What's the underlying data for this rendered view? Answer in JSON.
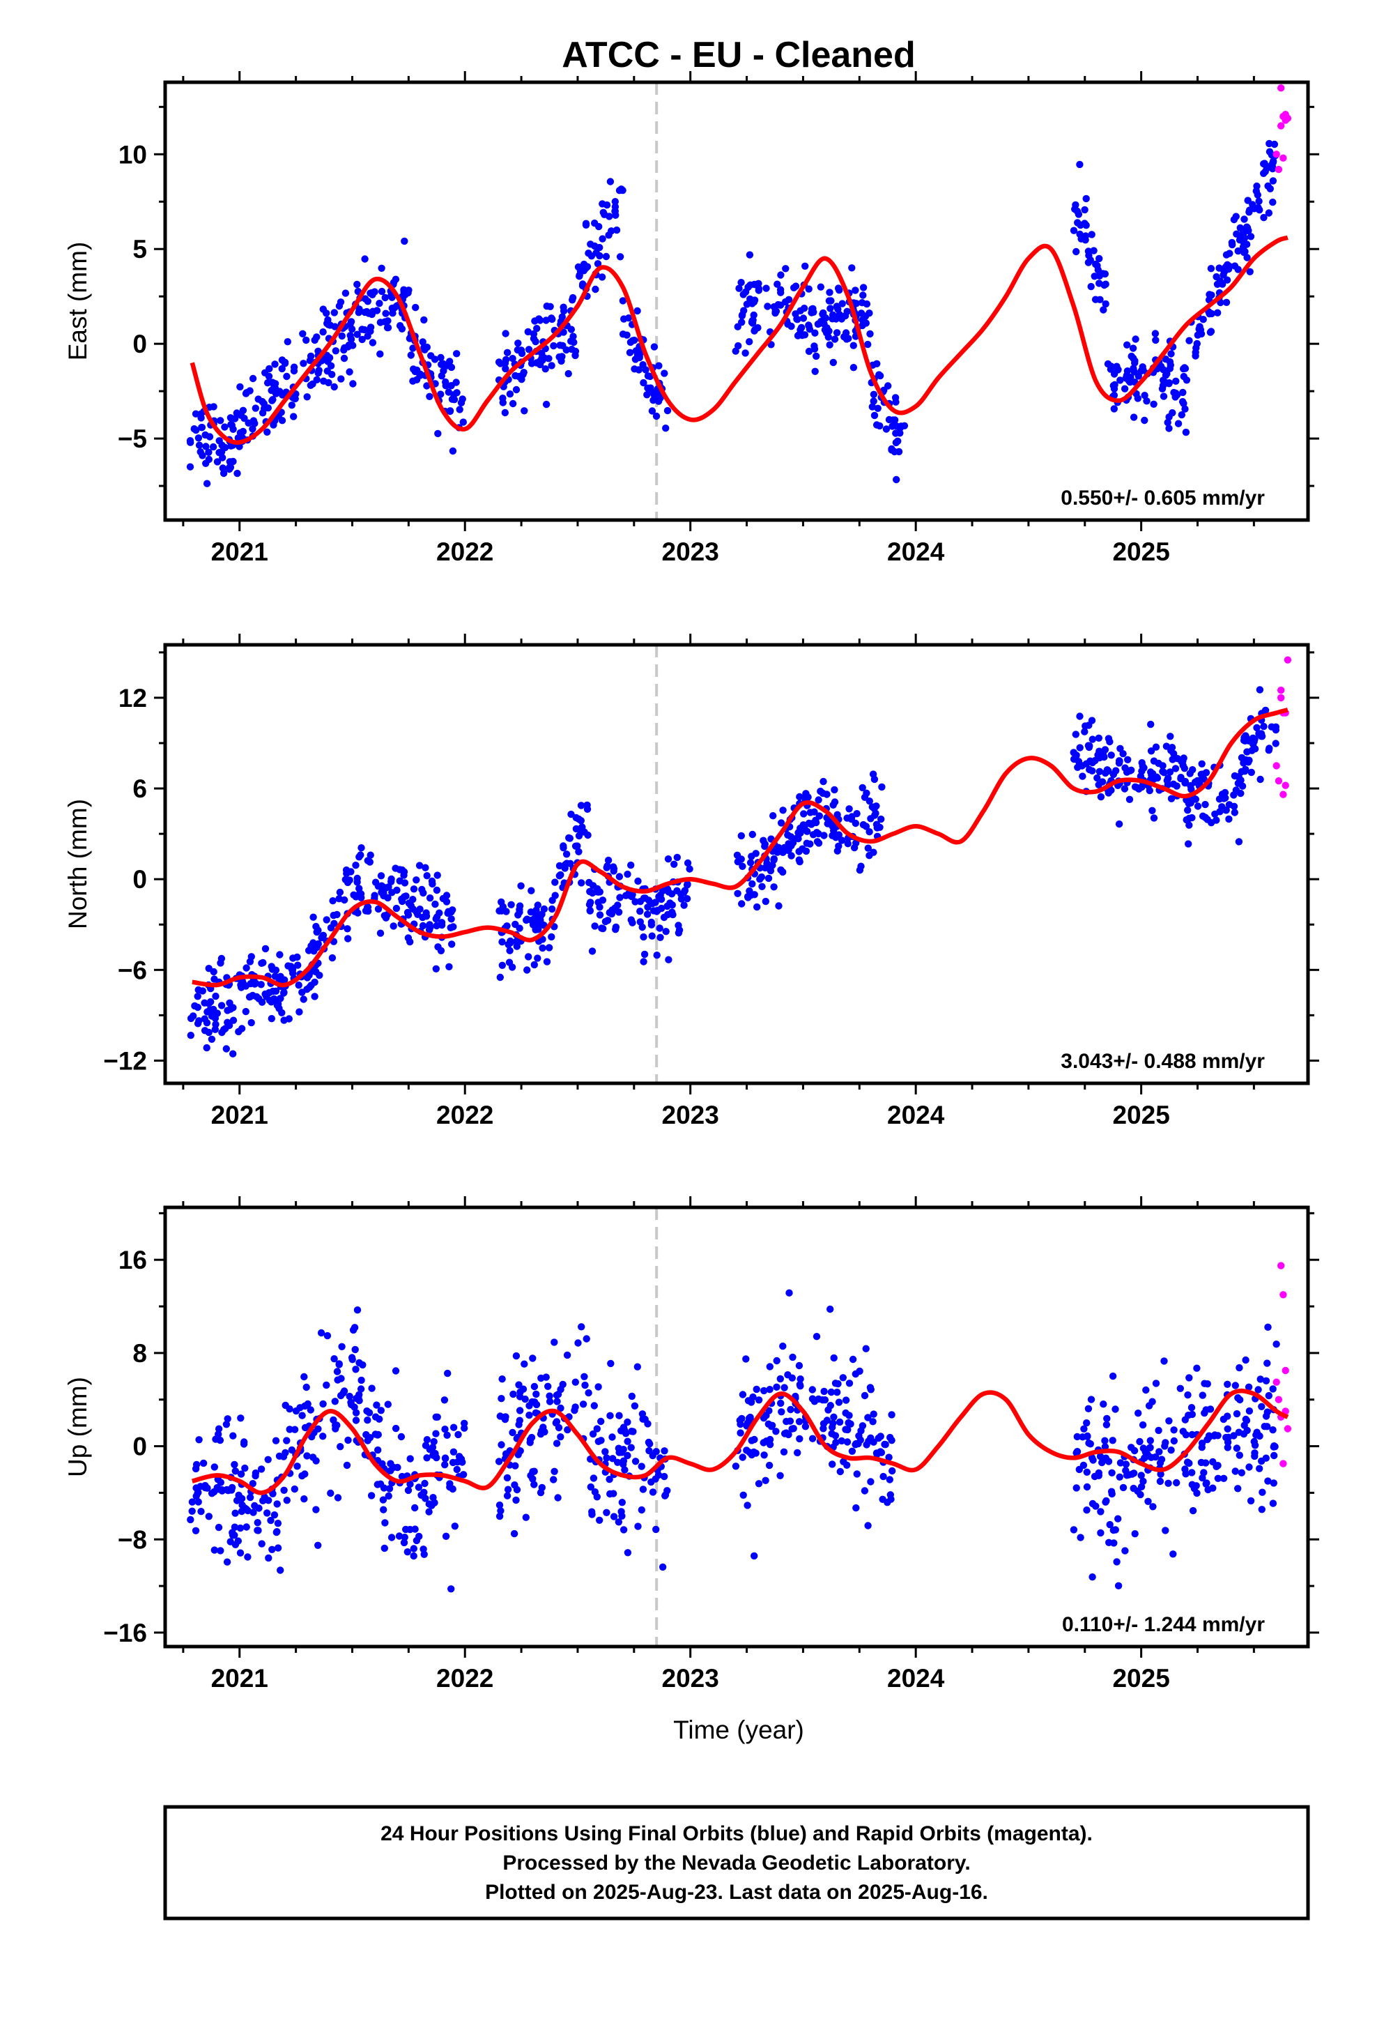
{
  "title": "ATCC  - EU - Cleaned",
  "xlabel": "Time (year)",
  "footer": {
    "line1": "24 Hour Positions Using Final Orbits (blue) and Rapid Orbits (magenta).",
    "line2": "Processed by the Nevada Geodetic Laboratory.",
    "line3": "Plotted on 2025-Aug-23. Last data on 2025-Aug-16."
  },
  "colors": {
    "final": "#0000ff",
    "rapid": "#ff00ff",
    "model": "#ff0000",
    "marker_line": "#c8c8c8"
  },
  "chart_data": [
    {
      "type": "scatter",
      "ylabel": "East (mm)",
      "rate_label": "0.550+/- 0.605 mm/yr",
      "xlim": [
        2020.67,
        2025.74
      ],
      "ylim": [
        -9.3,
        13.8
      ],
      "xticks": [
        2021,
        2022,
        2023,
        2024,
        2025
      ],
      "yticks": [
        -5,
        0,
        5,
        10
      ],
      "grid": false,
      "vline_x": 2022.85,
      "model_curve": {
        "x": [
          2020.79,
          2020.85,
          2020.92,
          2021.0,
          2021.1,
          2021.2,
          2021.3,
          2021.4,
          2021.5,
          2021.6,
          2021.7,
          2021.8,
          2021.9,
          2022.0,
          2022.1,
          2022.2,
          2022.3,
          2022.4,
          2022.5,
          2022.6,
          2022.7,
          2022.8,
          2022.9,
          2023.0,
          2023.1,
          2023.2,
          2023.3,
          2023.4,
          2023.5,
          2023.6,
          2023.7,
          2023.8,
          2023.9,
          2024.0,
          2024.1,
          2024.2,
          2024.3,
          2024.4,
          2024.5,
          2024.6,
          2024.7,
          2024.8,
          2024.9,
          2025.0,
          2025.1,
          2025.2,
          2025.3,
          2025.4,
          2025.5,
          2025.6,
          2025.65
        ],
        "y": [
          -1.0,
          -3.5,
          -4.8,
          -5.2,
          -4.5,
          -3.0,
          -1.5,
          0.0,
          1.8,
          3.4,
          2.5,
          -0.5,
          -3.5,
          -4.5,
          -3.0,
          -1.5,
          -0.5,
          0.5,
          2.0,
          4.0,
          3.0,
          -0.5,
          -3.0,
          -4.0,
          -3.5,
          -2.0,
          -0.5,
          1.0,
          3.0,
          4.5,
          2.5,
          -1.5,
          -3.5,
          -3.3,
          -1.8,
          -0.5,
          0.8,
          2.5,
          4.5,
          5.0,
          2.0,
          -2.0,
          -3.0,
          -2.0,
          -0.5,
          1.0,
          2.0,
          3.0,
          4.5,
          5.4,
          5.6
        ]
      },
      "series_seasonal": [
        {
          "x0": 2020.78,
          "x1": 2021.0,
          "y0": -4.8,
          "y1": -5.0
        },
        {
          "x0": 2021.0,
          "x1": 2021.5,
          "y0": -4.5,
          "y1": 1.0
        },
        {
          "x0": 2021.5,
          "x1": 2021.75,
          "y0": 1.5,
          "y1": 2.5
        },
        {
          "x0": 2021.75,
          "x1": 2022.0,
          "y0": 0.0,
          "y1": -4.0
        },
        {
          "x0": 2022.15,
          "x1": 2022.5,
          "y0": -2.0,
          "y1": 1.0
        },
        {
          "x0": 2022.5,
          "x1": 2022.7,
          "y0": 3.0,
          "y1": 7.5
        },
        {
          "x0": 2022.7,
          "x1": 2022.9,
          "y0": 1.0,
          "y1": -3.5
        },
        {
          "x0": 2023.2,
          "x1": 2023.8,
          "y0": 1.5,
          "y1": 1.5
        },
        {
          "x0": 2023.8,
          "x1": 2023.95,
          "y0": -2.0,
          "y1": -5.5
        },
        {
          "x0": 2024.7,
          "x1": 2024.85,
          "y0": 7.0,
          "y1": 2.5
        },
        {
          "x0": 2024.85,
          "x1": 2025.2,
          "y0": -1.5,
          "y1": -2.5
        },
        {
          "x0": 2025.2,
          "x1": 2025.6,
          "y0": -1.0,
          "y1": 10.0
        }
      ],
      "rapid_points": {
        "x": [
          2025.6,
          2025.61,
          2025.62,
          2025.62,
          2025.63,
          2025.63,
          2025.64,
          2025.64,
          2025.65
        ],
        "y": [
          10.0,
          9.2,
          11.5,
          13.5,
          12.0,
          9.8,
          11.8,
          12.1,
          11.9
        ]
      }
    },
    {
      "type": "scatter",
      "ylabel": "North (mm)",
      "rate_label": "3.043+/- 0.488 mm/yr",
      "xlim": [
        2020.67,
        2025.74
      ],
      "ylim": [
        -13.5,
        15.5
      ],
      "xticks": [
        2021,
        2022,
        2023,
        2024,
        2025
      ],
      "yticks": [
        -12,
        -6,
        0,
        6,
        12
      ],
      "grid": false,
      "vline_x": 2022.85,
      "model_curve": {
        "x": [
          2020.79,
          2020.9,
          2021.0,
          2021.1,
          2021.2,
          2021.3,
          2021.4,
          2021.5,
          2021.6,
          2021.7,
          2021.8,
          2021.9,
          2022.0,
          2022.1,
          2022.2,
          2022.3,
          2022.4,
          2022.5,
          2022.6,
          2022.7,
          2022.8,
          2022.9,
          2023.0,
          2023.1,
          2023.2,
          2023.3,
          2023.4,
          2023.5,
          2023.6,
          2023.7,
          2023.8,
          2023.9,
          2024.0,
          2024.1,
          2024.2,
          2024.3,
          2024.4,
          2024.5,
          2024.6,
          2024.7,
          2024.8,
          2024.9,
          2025.0,
          2025.1,
          2025.2,
          2025.3,
          2025.4,
          2025.5,
          2025.6,
          2025.65
        ],
        "y": [
          -6.8,
          -7.0,
          -6.5,
          -6.5,
          -7.0,
          -6.0,
          -4.0,
          -2.0,
          -1.5,
          -2.5,
          -3.5,
          -3.8,
          -3.5,
          -3.2,
          -3.5,
          -4.0,
          -2.5,
          1.0,
          0.5,
          -0.5,
          -0.8,
          -0.3,
          0.0,
          -0.3,
          -0.5,
          1.0,
          3.0,
          5.0,
          4.5,
          3.0,
          2.5,
          3.0,
          3.5,
          3.0,
          2.5,
          4.5,
          7.0,
          8.0,
          7.5,
          6.0,
          5.8,
          6.5,
          6.5,
          6.0,
          5.5,
          6.5,
          9.0,
          10.5,
          11.0,
          11.2
        ]
      },
      "series_seasonal": [
        {
          "x0": 2020.78,
          "x1": 2021.0,
          "y0": -9.0,
          "y1": -8.0
        },
        {
          "x0": 2021.0,
          "x1": 2021.3,
          "y0": -7.5,
          "y1": -7.5
        },
        {
          "x0": 2021.3,
          "x1": 2021.55,
          "y0": -6.0,
          "y1": 0.5
        },
        {
          "x0": 2021.55,
          "x1": 2021.95,
          "y0": -0.5,
          "y1": -3.0
        },
        {
          "x0": 2022.15,
          "x1": 2022.4,
          "y0": -3.5,
          "y1": -3.0
        },
        {
          "x0": 2022.4,
          "x1": 2022.55,
          "y0": -1.0,
          "y1": 4.0
        },
        {
          "x0": 2022.55,
          "x1": 2022.9,
          "y0": -1.0,
          "y1": -2.5
        },
        {
          "x0": 2022.9,
          "x1": 2023.0,
          "y0": -1.0,
          "y1": -0.5
        },
        {
          "x0": 2023.2,
          "x1": 2023.5,
          "y0": -0.5,
          "y1": 3.5
        },
        {
          "x0": 2023.5,
          "x1": 2023.85,
          "y0": 4.0,
          "y1": 3.5
        },
        {
          "x0": 2024.7,
          "x1": 2024.8,
          "y0": 10.0,
          "y1": 8.0
        },
        {
          "x0": 2024.8,
          "x1": 2025.2,
          "y0": 7.0,
          "y1": 6.5
        },
        {
          "x0": 2025.2,
          "x1": 2025.45,
          "y0": 5.5,
          "y1": 5.5
        },
        {
          "x0": 2025.45,
          "x1": 2025.6,
          "y0": 8.0,
          "y1": 10.5
        }
      ],
      "rapid_points": {
        "x": [
          2025.6,
          2025.61,
          2025.62,
          2025.62,
          2025.63,
          2025.63,
          2025.64,
          2025.64,
          2025.65
        ],
        "y": [
          7.5,
          6.5,
          12.0,
          12.5,
          11.0,
          5.6,
          11.0,
          6.2,
          14.5
        ]
      }
    },
    {
      "type": "scatter",
      "ylabel": "Up (mm)",
      "rate_label": "0.110+/- 1.244 mm/yr",
      "xlim": [
        2020.67,
        2025.74
      ],
      "ylim": [
        -17.2,
        20.5
      ],
      "xticks": [
        2021,
        2022,
        2023,
        2024,
        2025
      ],
      "yticks": [
        -16,
        -8,
        0,
        8,
        16
      ],
      "grid": false,
      "vline_x": 2022.85,
      "model_curve": {
        "x": [
          2020.79,
          2020.9,
          2021.0,
          2021.1,
          2021.2,
          2021.3,
          2021.4,
          2021.5,
          2021.6,
          2021.7,
          2021.8,
          2021.9,
          2022.0,
          2022.1,
          2022.2,
          2022.3,
          2022.4,
          2022.5,
          2022.6,
          2022.7,
          2022.8,
          2022.9,
          2023.0,
          2023.1,
          2023.2,
          2023.3,
          2023.4,
          2023.5,
          2023.6,
          2023.7,
          2023.8,
          2023.9,
          2024.0,
          2024.1,
          2024.2,
          2024.3,
          2024.4,
          2024.5,
          2024.6,
          2024.7,
          2024.8,
          2024.9,
          2025.0,
          2025.1,
          2025.2,
          2025.3,
          2025.4,
          2025.5,
          2025.6,
          2025.65
        ],
        "y": [
          -3.0,
          -2.5,
          -3.0,
          -4.0,
          -2.5,
          1.0,
          3.0,
          1.5,
          -1.5,
          -3.0,
          -2.5,
          -2.5,
          -3.0,
          -3.5,
          -1.0,
          2.0,
          3.0,
          1.0,
          -1.5,
          -2.5,
          -2.5,
          -1.0,
          -1.5,
          -2.0,
          -0.5,
          2.5,
          4.5,
          3.0,
          0.0,
          -1.0,
          -1.0,
          -1.5,
          -2.0,
          0.0,
          2.5,
          4.5,
          4.0,
          1.0,
          -0.5,
          -1.0,
          -0.5,
          -0.5,
          -1.5,
          -2.0,
          -0.5,
          2.0,
          4.5,
          4.5,
          3.0,
          2.5
        ]
      },
      "series_seasonal": [
        {
          "x0": 2020.78,
          "x1": 2021.2,
          "y0": -4.0,
          "y1": -5.0
        },
        {
          "x0": 2021.2,
          "x1": 2021.55,
          "y0": -1.0,
          "y1": 4.0
        },
        {
          "x0": 2021.55,
          "x1": 2021.8,
          "y0": 1.0,
          "y1": -7.0
        },
        {
          "x0": 2021.8,
          "x1": 2022.0,
          "y0": -3.0,
          "y1": -1.0
        },
        {
          "x0": 2022.15,
          "x1": 2022.55,
          "y0": 0.0,
          "y1": 5.0
        },
        {
          "x0": 2022.55,
          "x1": 2022.9,
          "y0": 0.0,
          "y1": -2.0
        },
        {
          "x0": 2023.2,
          "x1": 2023.55,
          "y0": 0.0,
          "y1": 6.0
        },
        {
          "x0": 2023.55,
          "x1": 2023.9,
          "y0": 4.0,
          "y1": -1.0
        },
        {
          "x0": 2024.7,
          "x1": 2025.0,
          "y0": -3.0,
          "y1": -2.0
        },
        {
          "x0": 2025.0,
          "x1": 2025.6,
          "y0": -1.0,
          "y1": 2.0
        }
      ],
      "rapid_points": {
        "x": [
          2025.6,
          2025.61,
          2025.62,
          2025.62,
          2025.63,
          2025.63,
          2025.64,
          2025.64,
          2025.65
        ],
        "y": [
          5.5,
          4.0,
          2.5,
          15.5,
          13.0,
          -1.5,
          6.5,
          3.0,
          1.5
        ]
      }
    }
  ]
}
